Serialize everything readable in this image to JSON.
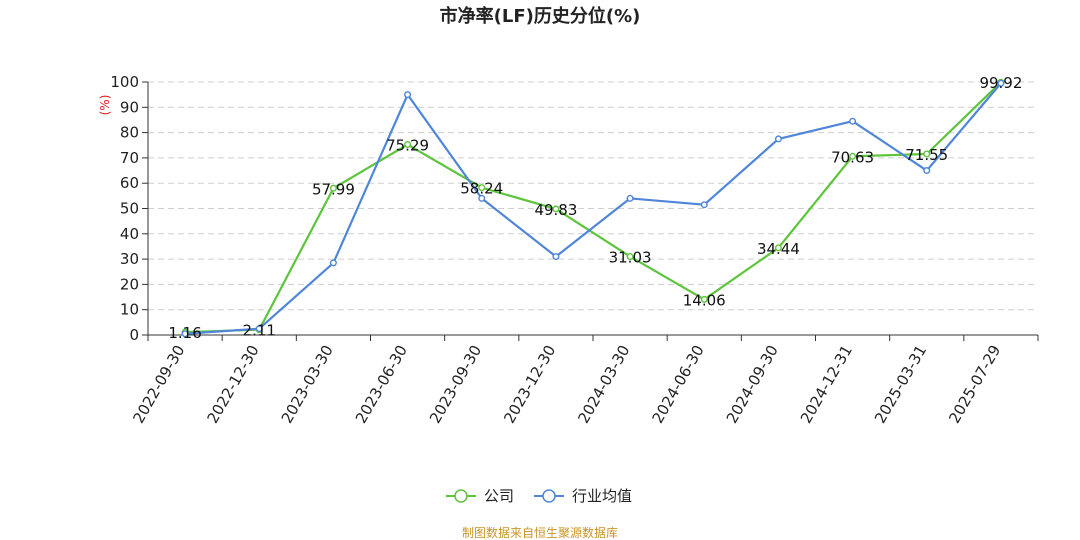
{
  "chart_data": {
    "type": "line",
    "title": "市净率(LF)历史分位(%)",
    "y_unit": "(%)",
    "ylim": [
      0,
      100
    ],
    "yticks": [
      0,
      10,
      20,
      30,
      40,
      50,
      60,
      70,
      80,
      90,
      100
    ],
    "grid": "horizontal dashed",
    "legend_position": "bottom-center",
    "categories": [
      "2022-09-30",
      "2022-12-30",
      "2023-03-30",
      "2023-06-30",
      "2023-09-30",
      "2023-12-30",
      "2024-03-30",
      "2024-06-30",
      "2024-09-30",
      "2024-12-31",
      "2025-03-31",
      "2025-07-29"
    ],
    "series": [
      {
        "name": "公司",
        "color": "#5dc43c",
        "values": [
          1.16,
          2.11,
          57.99,
          75.29,
          58.24,
          49.83,
          31.03,
          14.06,
          34.44,
          70.63,
          71.55,
          99.92
        ],
        "labels": [
          "1.16",
          "2.11",
          "57.99",
          "75.29",
          "58.24",
          "49.83",
          "31.03",
          "14.06",
          "34.44",
          "70.63",
          "71.55",
          "99.92"
        ]
      },
      {
        "name": "行业均值",
        "color": "#4f86d9",
        "values": [
          0.5,
          2.5,
          28.5,
          95,
          54,
          31,
          54,
          51.5,
          77.5,
          84.5,
          65,
          99.5
        ]
      }
    ]
  },
  "source": "制图数据来自恒生聚源数据库"
}
